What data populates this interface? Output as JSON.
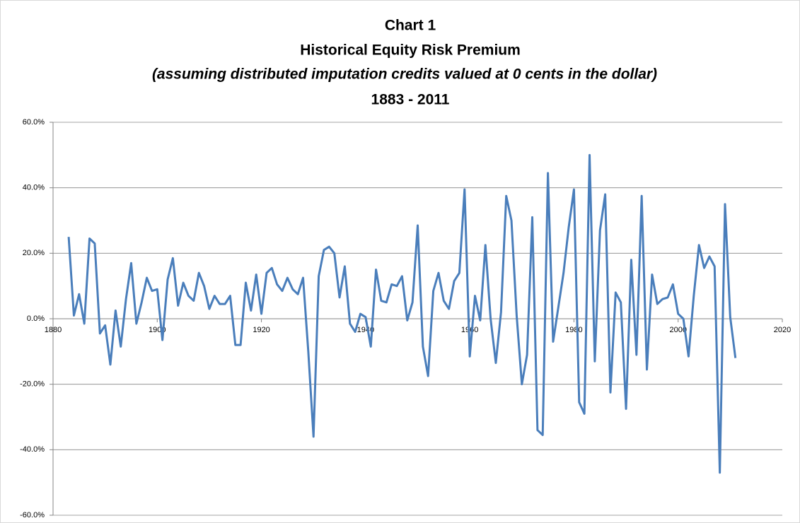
{
  "chart_data": {
    "type": "line",
    "title": "Chart 1",
    "subtitle": "Historical Equity Risk Premium",
    "annotation": "(assuming distributed imputation credits valued at 0 cents in the dollar)",
    "period": "1883 - 2011",
    "x": [
      1883,
      1884,
      1885,
      1886,
      1887,
      1888,
      1889,
      1890,
      1891,
      1892,
      1893,
      1894,
      1895,
      1896,
      1897,
      1898,
      1899,
      1900,
      1901,
      1902,
      1903,
      1904,
      1905,
      1906,
      1907,
      1908,
      1909,
      1910,
      1911,
      1912,
      1913,
      1914,
      1915,
      1916,
      1917,
      1918,
      1919,
      1920,
      1921,
      1922,
      1923,
      1924,
      1925,
      1926,
      1927,
      1928,
      1929,
      1930,
      1931,
      1932,
      1933,
      1934,
      1935,
      1936,
      1937,
      1938,
      1939,
      1940,
      1941,
      1942,
      1943,
      1944,
      1945,
      1946,
      1947,
      1948,
      1949,
      1950,
      1951,
      1952,
      1953,
      1954,
      1955,
      1956,
      1957,
      1958,
      1959,
      1960,
      1961,
      1962,
      1963,
      1964,
      1965,
      1966,
      1967,
      1968,
      1969,
      1970,
      1971,
      1972,
      1973,
      1974,
      1975,
      1976,
      1977,
      1978,
      1979,
      1980,
      1981,
      1982,
      1983,
      1984,
      1985,
      1986,
      1987,
      1988,
      1989,
      1990,
      1991,
      1992,
      1993,
      1994,
      1995,
      1996,
      1997,
      1998,
      1999,
      2000,
      2001,
      2002,
      2003,
      2004,
      2005,
      2006,
      2007,
      2008,
      2009,
      2010,
      2011
    ],
    "series": [
      {
        "color": "#4a7ebb",
        "values": [
          25,
          1,
          7.5,
          -1.5,
          24.5,
          23,
          -4.5,
          -2,
          -14,
          2.5,
          -8.5,
          6,
          17,
          -1.5,
          5,
          12.5,
          8.5,
          9,
          -6.5,
          12,
          18.5,
          4,
          11,
          7,
          5.5,
          14,
          10,
          3,
          7,
          4.5,
          4.5,
          7,
          -8,
          -8,
          11,
          2.5,
          13.5,
          1.5,
          14,
          15.5,
          10.5,
          8.5,
          12.5,
          9,
          7.5,
          12.5,
          -10,
          -36,
          13,
          21,
          22,
          20,
          6.5,
          16,
          -1.5,
          -4,
          1.5,
          0.5,
          -8.5,
          15,
          5.5,
          5,
          10.5,
          10,
          13,
          -0.5,
          5,
          28.5,
          -8.5,
          -17.5,
          8.5,
          14,
          5.5,
          3,
          11.5,
          14,
          39.5,
          -11.5,
          7,
          -0.5,
          22.5,
          0,
          -13.5,
          2,
          37.5,
          30,
          1,
          -20,
          -11,
          31,
          -34,
          -35.5,
          44.5,
          -7,
          3.5,
          14,
          28,
          39.5,
          -25.5,
          -29,
          50,
          -13,
          27,
          38,
          -22.5,
          8,
          5,
          -27.5,
          18,
          -11,
          37.5,
          -15.5,
          13.5,
          4.5,
          6,
          6.5,
          10.5,
          1.5,
          0,
          -11.5,
          7,
          22.5,
          15.5,
          19,
          16,
          -47,
          35,
          0.5,
          -12
        ]
      }
    ],
    "xlim": [
      1880,
      2020
    ],
    "xticks": [
      1880,
      1900,
      1920,
      1940,
      1960,
      1980,
      2000,
      2020
    ],
    "ylim": [
      -60,
      60
    ],
    "yticks": [
      {
        "value": -60,
        "label": "-60.0%"
      },
      {
        "value": -40,
        "label": "-40.0%"
      },
      {
        "value": -20,
        "label": "-20.0%"
      },
      {
        "value": 0,
        "label": "0.0%"
      },
      {
        "value": 20,
        "label": "20.0%"
      },
      {
        "value": 40,
        "label": "40.0%"
      },
      {
        "value": 60,
        "label": "60.0%"
      }
    ],
    "grid": true
  }
}
